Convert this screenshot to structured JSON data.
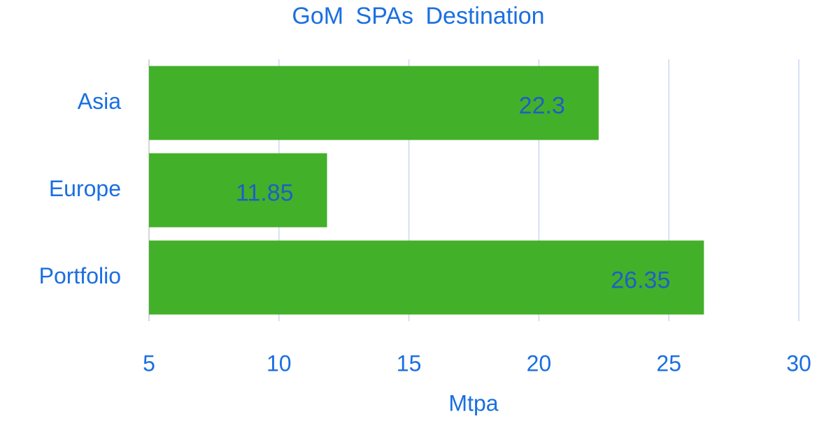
{
  "chart_data": {
    "type": "bar",
    "orientation": "horizontal",
    "title": "GoM SPAs Destination",
    "x_label": "Mtpa",
    "categories": [
      "Asia",
      "Europe",
      "Portfolio"
    ],
    "values": [
      22.3,
      11.85,
      26.35
    ],
    "color": "#43b02a",
    "xlim": [
      5,
      30
    ],
    "xticks": [
      5,
      10,
      15,
      20,
      25,
      30
    ],
    "grid": true
  }
}
